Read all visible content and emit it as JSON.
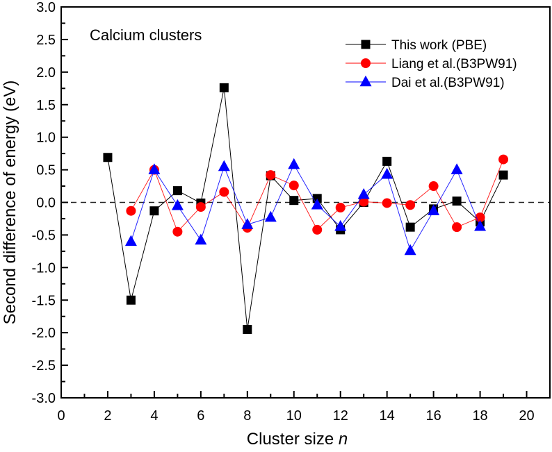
{
  "chart_data": {
    "type": "line",
    "title": "",
    "annotation": "Calcium clusters",
    "xlabel": "Cluster size",
    "xlabel_italic": "n",
    "ylabel": "Second difference of energy (eV)",
    "xlim": [
      0,
      21
    ],
    "ylim": [
      -3.0,
      3.0
    ],
    "xticks": [
      0,
      2,
      4,
      6,
      8,
      10,
      12,
      14,
      16,
      18,
      20
    ],
    "xtick_labels": [
      "0",
      "2",
      "4",
      "6",
      "8",
      "10",
      "12",
      "14",
      "16",
      "18",
      "20"
    ],
    "yticks": [
      -3.0,
      -2.5,
      -2.0,
      -1.5,
      -1.0,
      -0.5,
      0.0,
      0.5,
      1.0,
      1.5,
      2.0,
      2.5,
      3.0
    ],
    "ytick_labels": [
      "-3.0",
      "-2.5",
      "-2.0",
      "-1.5",
      "-1.0",
      "-0.5",
      "0.0",
      "0.5",
      "1.0",
      "1.5",
      "2.0",
      "2.5",
      "3.0"
    ],
    "reference_line": {
      "y": 0.0,
      "style": "dashed"
    },
    "grid": false,
    "legend_position": "top-right",
    "series": [
      {
        "name": "This work (PBE)",
        "color": "#000000",
        "marker": "square",
        "x": [
          2,
          3,
          4,
          5,
          6,
          7,
          8,
          9,
          10,
          11,
          12,
          13,
          14,
          15,
          16,
          17,
          18,
          19
        ],
        "values": [
          0.69,
          -1.5,
          -0.13,
          0.18,
          -0.01,
          1.76,
          -1.95,
          0.41,
          0.03,
          0.06,
          -0.42,
          0.0,
          0.63,
          -0.38,
          -0.1,
          0.02,
          -0.3,
          0.42
        ]
      },
      {
        "name": "Liang et al.(B3PW91)",
        "color": "#ff0000",
        "marker": "circle",
        "x": [
          3,
          4,
          5,
          6,
          7,
          8,
          9,
          10,
          11,
          12,
          13,
          14,
          15,
          16,
          17,
          18,
          19
        ],
        "values": [
          -0.13,
          0.5,
          -0.45,
          -0.07,
          0.16,
          -0.39,
          0.42,
          0.26,
          -0.42,
          -0.08,
          0.01,
          -0.01,
          -0.04,
          0.25,
          -0.38,
          -0.23,
          0.66
        ]
      },
      {
        "name": "Dai et al.(B3PW91)",
        "color": "#0000ff",
        "marker": "triangle",
        "x": [
          3,
          4,
          5,
          6,
          7,
          8,
          9,
          10,
          11,
          12,
          13,
          14,
          15,
          16,
          17,
          18
        ],
        "values": [
          -0.6,
          0.5,
          -0.05,
          -0.58,
          0.55,
          -0.34,
          -0.23,
          0.58,
          -0.04,
          -0.37,
          0.12,
          0.43,
          -0.74,
          -0.13,
          0.5,
          -0.37
        ]
      }
    ]
  }
}
